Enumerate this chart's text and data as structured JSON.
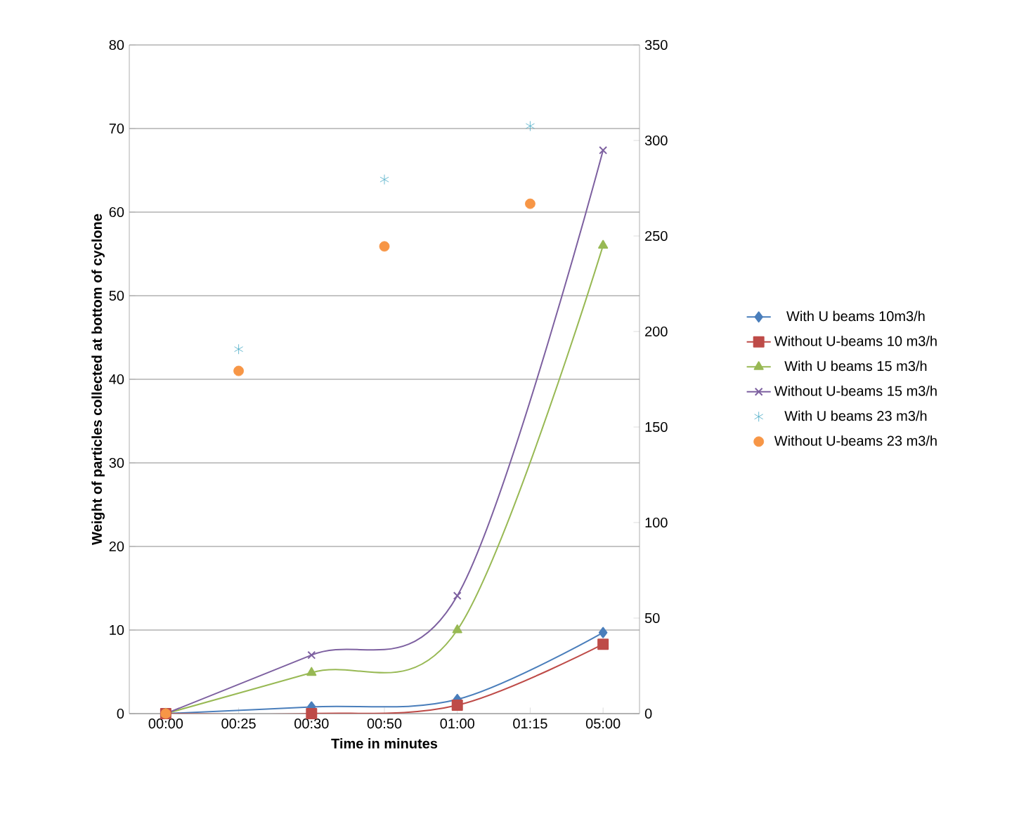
{
  "chart_data": {
    "type": "line",
    "xlabel": "Time in minutes",
    "ylabel": "Weight of particles collected at bottom of cyclone",
    "categories": [
      "00:00",
      "00:25",
      "00:30",
      "00:50",
      "01:00",
      "01:15",
      "05:00"
    ],
    "ylim": [
      0,
      80
    ],
    "yticks": [
      0,
      10,
      20,
      30,
      40,
      50,
      60,
      70,
      80
    ],
    "y2lim": [
      0,
      350
    ],
    "y2ticks": [
      0,
      50,
      100,
      150,
      200,
      250,
      300,
      350
    ],
    "grid": "y",
    "legend": "right",
    "series": [
      {
        "name": "With U beams 10m3/h",
        "marker": "diamond",
        "color": "#4a7ebb",
        "values": [
          0,
          null,
          0.8,
          null,
          1.7,
          null,
          9.7
        ]
      },
      {
        "name": "Without U-beams 10 m3/h",
        "marker": "square",
        "color": "#be4b48",
        "values": [
          0,
          null,
          0,
          null,
          1.0,
          null,
          8.3
        ]
      },
      {
        "name": "With U beams 15 m3/h",
        "marker": "triangle",
        "color": "#98b954",
        "values": [
          0,
          null,
          4.9,
          null,
          10,
          null,
          56
        ]
      },
      {
        "name": "Without U-beams 15 m3/h",
        "marker": "cross",
        "color": "#7d60a0",
        "values": [
          0,
          null,
          7.0,
          null,
          14.1,
          null,
          67.4
        ]
      },
      {
        "name": "With U beams 23 m3/h",
        "type": "scatter",
        "marker": "cross",
        "color": "#46aac5",
        "values": [
          null,
          43.6,
          null,
          63.9,
          null,
          70.3,
          null
        ]
      },
      {
        "name": "Without U-beams 23 m3/h",
        "type": "scatter",
        "marker": "circle",
        "color": "#f79646",
        "values": [
          0,
          41.0,
          null,
          55.9,
          null,
          61.0,
          null
        ]
      }
    ]
  }
}
